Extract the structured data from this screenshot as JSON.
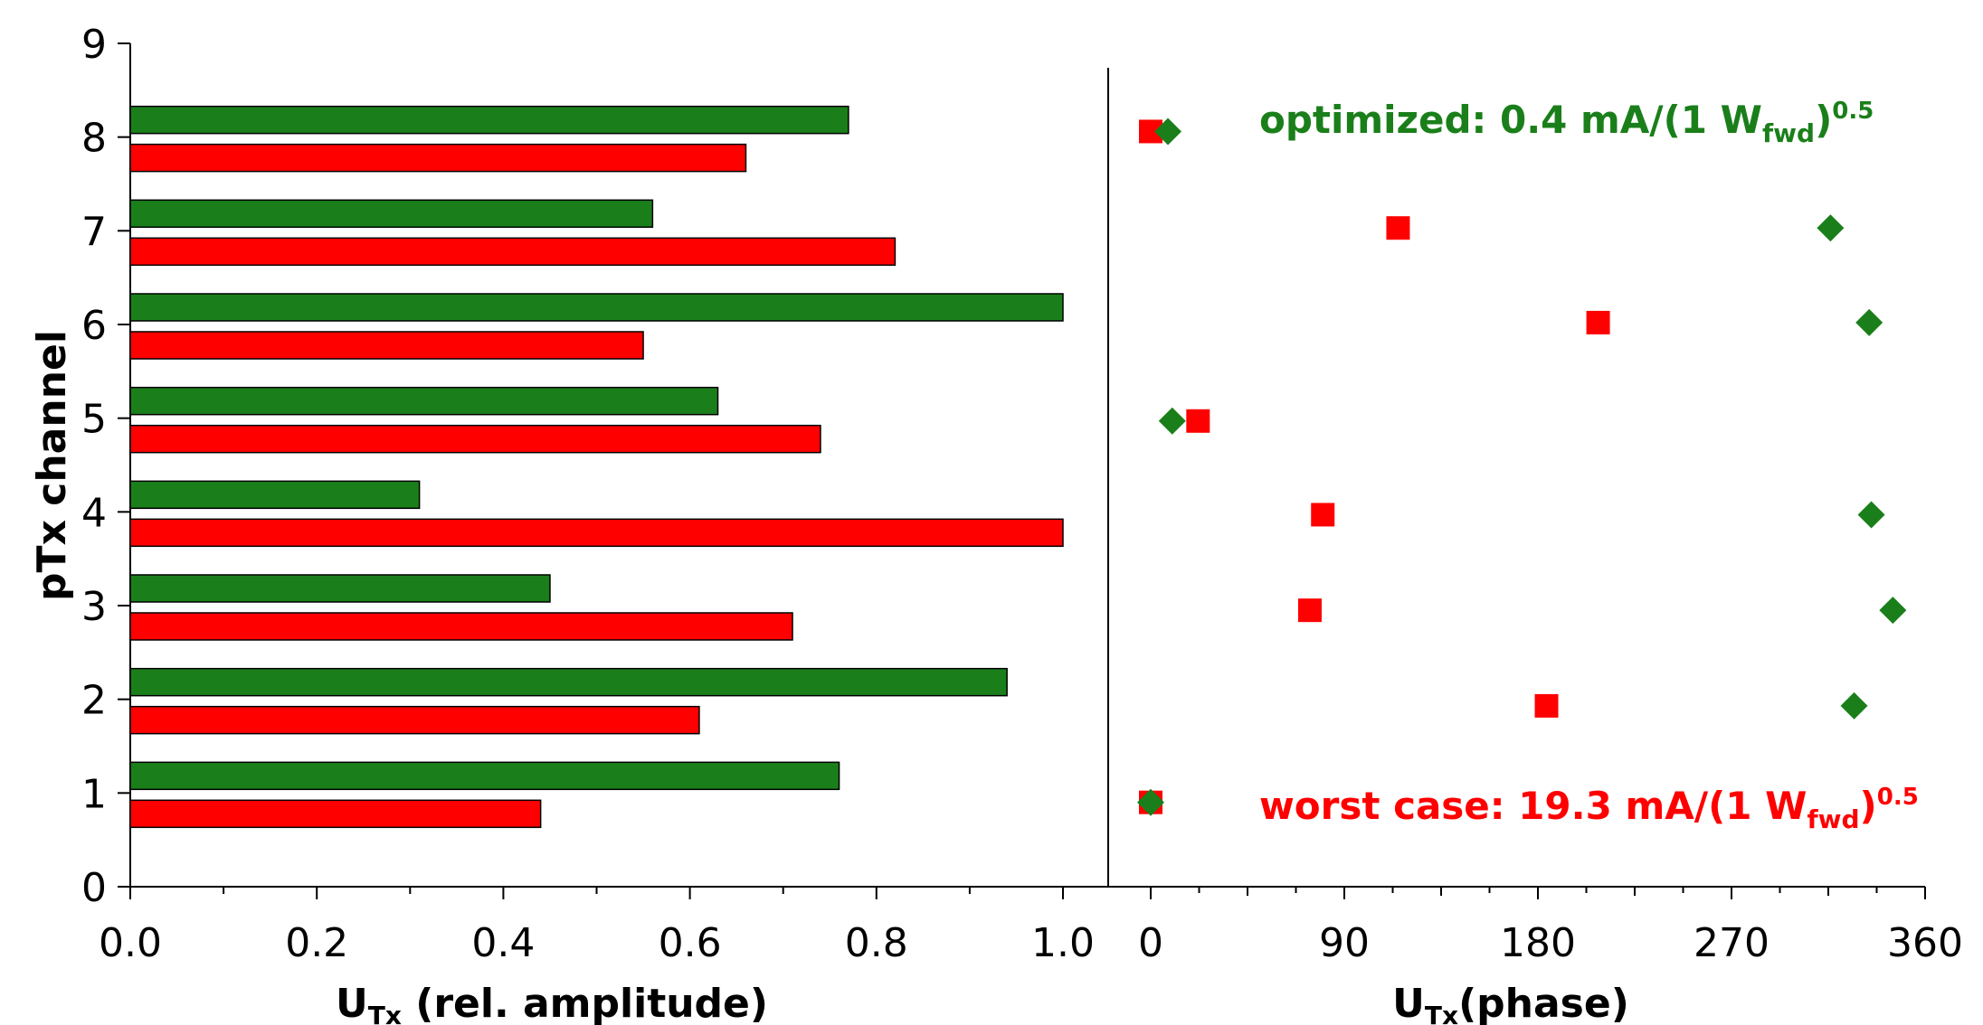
{
  "chart_data": [
    {
      "type": "bar",
      "orientation": "horizontal",
      "xlabel_main": "U",
      "xlabel_sub": "Tx",
      "xlabel_rest": " (rel. amplitude)",
      "ylabel": "pTx channel",
      "xlim": [
        0,
        1.0
      ],
      "ylim": [
        0,
        9
      ],
      "xticks": [
        "0.0",
        "0.2",
        "0.4",
        "0.6",
        "0.8",
        "1.0"
      ],
      "yticks": [
        "0",
        "1",
        "2",
        "3",
        "4",
        "5",
        "6",
        "7",
        "8",
        "9"
      ],
      "categories": [
        1,
        2,
        3,
        4,
        5,
        6,
        7,
        8
      ],
      "series": [
        {
          "name": "optimized",
          "color": "#1a7f1a",
          "values": [
            0.76,
            0.94,
            0.45,
            0.31,
            0.63,
            1.0,
            0.56,
            0.77
          ]
        },
        {
          "name": "worst case",
          "color": "#ff0000",
          "values": [
            0.44,
            0.61,
            0.71,
            1.0,
            0.74,
            0.55,
            0.82,
            0.66
          ]
        }
      ]
    },
    {
      "type": "scatter",
      "xlabel_main": "U",
      "xlabel_sub": "Tx",
      "xlabel_rest": "(phase)",
      "xlim": [
        0,
        360
      ],
      "xticks": [
        "0",
        "90",
        "180",
        "270",
        "360"
      ],
      "series": [
        {
          "name": "optimized",
          "marker": "diamond",
          "color": "#1a7f1a",
          "points": [
            [
              0,
              0.9
            ],
            [
              327,
              1.93
            ],
            [
              345,
              2.95
            ],
            [
              335,
              3.97
            ],
            [
              10,
              4.97
            ],
            [
              334,
              6.02
            ],
            [
              316,
              7.03
            ],
            [
              8,
              8.06
            ]
          ]
        },
        {
          "name": "worst case",
          "marker": "square",
          "color": "#ff0000",
          "points": [
            [
              0,
              0.9
            ],
            [
              184,
              1.93
            ],
            [
              74,
              2.95
            ],
            [
              80,
              3.97
            ],
            [
              22,
              4.97
            ],
            [
              208,
              6.02
            ],
            [
              115,
              7.03
            ],
            [
              0,
              8.06
            ]
          ]
        }
      ]
    }
  ],
  "annotations": {
    "optimized": {
      "main": "optimized: 0.4 mA/(1 W",
      "sub": "fwd",
      "close": ")",
      "sup": "0.5",
      "color": "#1a7f1a"
    },
    "worst": {
      "main": "worst case: 19.3 mA/(1 W",
      "sub": "fwd",
      "close": ")",
      "sup": "0.5",
      "color": "#ff0000"
    }
  }
}
